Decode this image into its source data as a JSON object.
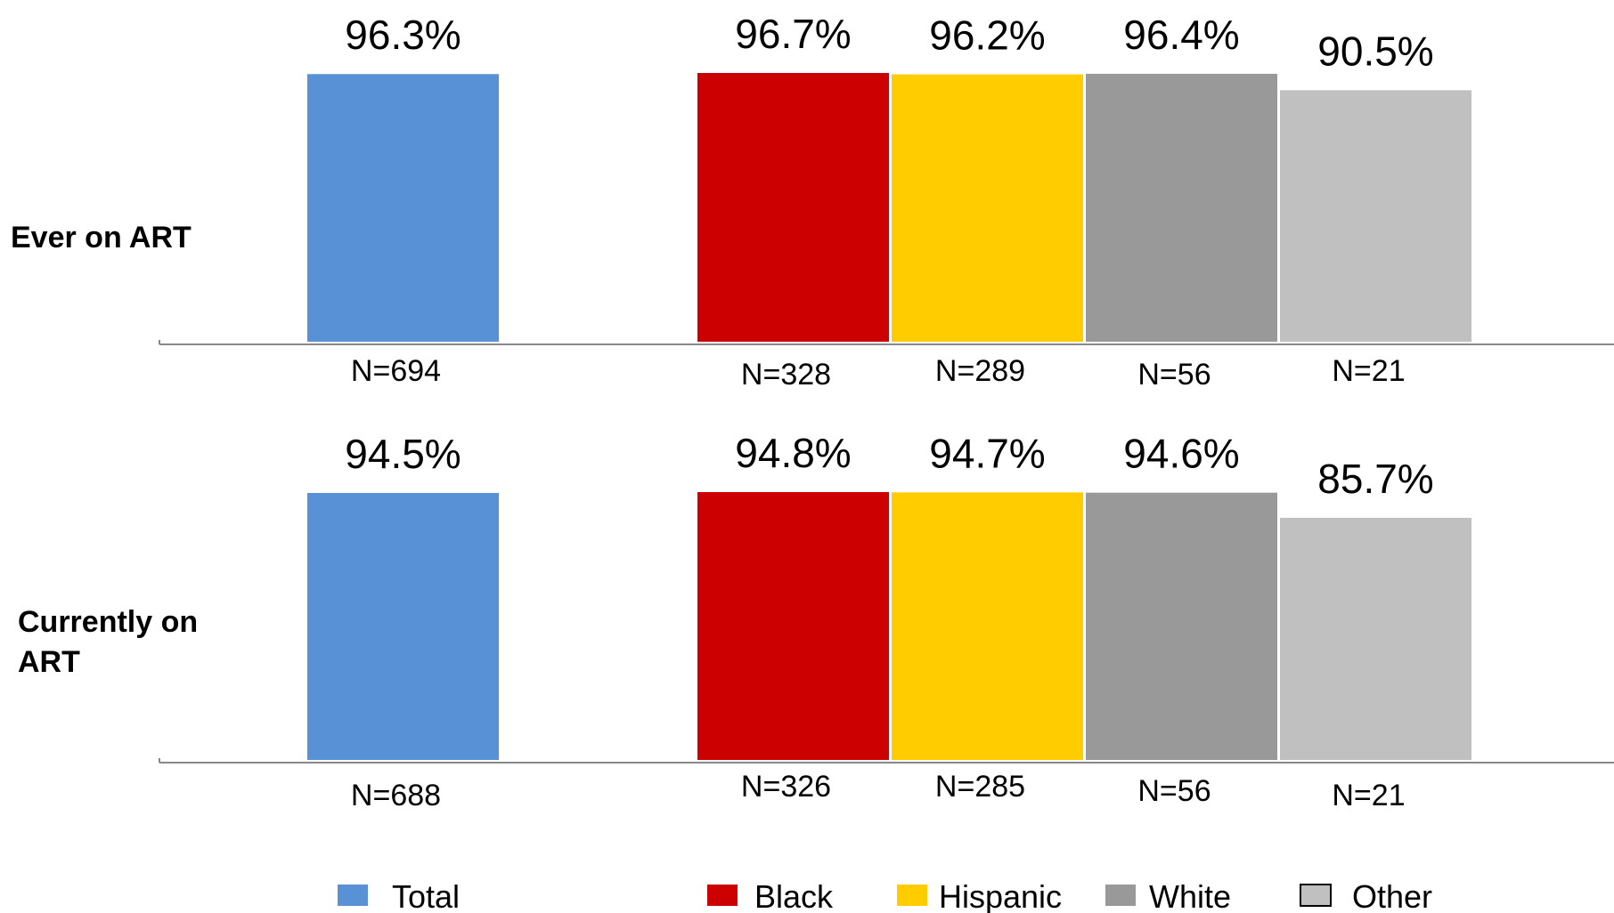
{
  "chart_data": {
    "type": "bar",
    "categories": [
      "Total",
      "Black",
      "Hispanic",
      "White",
      "Other"
    ],
    "colors": [
      "#5891d5",
      "#cc0000",
      "#ffcc00",
      "#999999",
      "#c0c0c0"
    ],
    "legend_position": "bottom",
    "panels": [
      {
        "label_lines": [
          "Ever on ART"
        ],
        "values": [
          96.3,
          96.7,
          96.2,
          96.4,
          90.5
        ],
        "value_labels": [
          "96.3%",
          "96.7%",
          "96.2%",
          "96.4%",
          "90.5%"
        ],
        "n_labels": [
          "N=694",
          "N=328",
          "N=289",
          "N=56",
          "N=21"
        ]
      },
      {
        "label_lines": [
          "Currently on",
          "ART"
        ],
        "values": [
          94.5,
          94.8,
          94.7,
          94.6,
          85.7
        ],
        "value_labels": [
          "94.5%",
          "94.8%",
          "94.7%",
          "94.6%",
          "85.7%"
        ],
        "n_labels": [
          "N=688",
          "N=326",
          "N=285",
          "N=56",
          "N=21"
        ]
      }
    ],
    "legend": [
      "Total",
      "Black",
      "Hispanic",
      "White",
      "Other"
    ]
  }
}
